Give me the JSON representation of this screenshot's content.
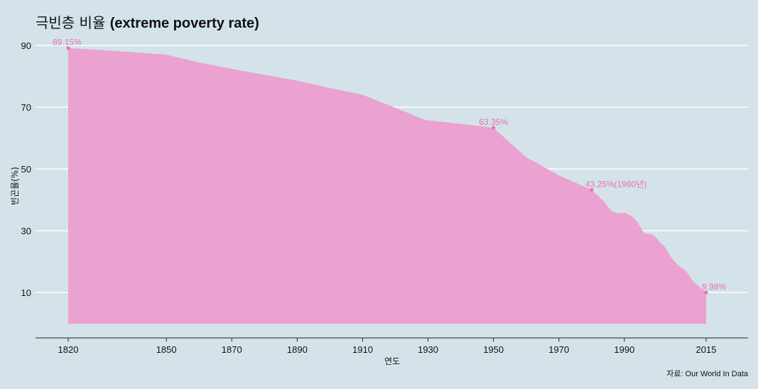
{
  "chart_data": {
    "type": "area",
    "title_ko": "극빈층 비율",
    "title_en": "(extreme poverty rate)",
    "xlabel": "연도",
    "ylabel": "빈곤율(%)",
    "source": "자료: Our World In Data",
    "xlim": [
      1805,
      2028
    ],
    "ylim": [
      0,
      92
    ],
    "x_ticks": [
      1820,
      1850,
      1870,
      1890,
      1910,
      1930,
      1950,
      1970,
      1990,
      2015
    ],
    "y_ticks": [
      10,
      30,
      50,
      70,
      90
    ],
    "baseline": 0,
    "series": [
      {
        "name": "extreme poverty rate",
        "x": [
          1820,
          1830,
          1840,
          1850,
          1860,
          1870,
          1880,
          1890,
          1900,
          1910,
          1920,
          1929,
          1940,
          1950,
          1955,
          1960,
          1965,
          1970,
          1975,
          1980,
          1982,
          1984,
          1986,
          1988,
          1990,
          1992,
          1993,
          1994,
          1996,
          1997,
          1998,
          1999,
          2000,
          2001,
          2002,
          2003,
          2004,
          2005,
          2006,
          2007,
          2008,
          2009,
          2010,
          2011,
          2012,
          2013,
          2014,
          2015
        ],
        "values": [
          89.15,
          88.5,
          87.8,
          87.0,
          84.5,
          82.4,
          80.5,
          78.6,
          76.2,
          74.0,
          69.8,
          65.9,
          64.6,
          63.35,
          58.5,
          53.8,
          50.9,
          47.9,
          45.6,
          43.25,
          41.3,
          39.2,
          36.5,
          35.6,
          35.9,
          34.9,
          34.0,
          32.8,
          29.3,
          29.0,
          28.9,
          28.3,
          27.5,
          26.1,
          25.3,
          23.7,
          21.9,
          20.4,
          19.3,
          18.3,
          17.7,
          16.7,
          15.2,
          13.6,
          12.8,
          11.7,
          10.9,
          9.98
        ]
      }
    ],
    "annotations": [
      {
        "x": 1820,
        "y": 89.15,
        "text": "89.15%"
      },
      {
        "x": 1950,
        "y": 63.35,
        "text": "63.35%"
      },
      {
        "x": 1980,
        "y": 43.25,
        "text": "43.25%(1980년)"
      },
      {
        "x": 2015,
        "y": 9.98,
        "text": "9.98%"
      }
    ],
    "colors": {
      "fill": "#eba2d0",
      "point": "#e86fb2",
      "label": "#e86fb2",
      "grid": "#ffffff",
      "background": "#d4e3ea"
    }
  }
}
